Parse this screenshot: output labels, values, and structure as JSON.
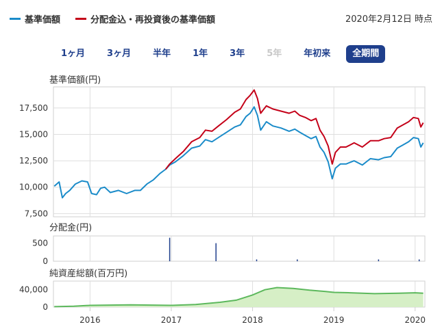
{
  "legend": {
    "nav_label": "基準価額",
    "nav_color": "#1a8bc9",
    "reinvested_label": "分配金込・再投資後の基準価額",
    "reinvested_color": "#c40018"
  },
  "as_of": "2020年2月12日 時点",
  "periods": [
    {
      "label": "1ヶ月",
      "state": "normal"
    },
    {
      "label": "3ヶ月",
      "state": "normal"
    },
    {
      "label": "半年",
      "state": "normal"
    },
    {
      "label": "1年",
      "state": "normal"
    },
    {
      "label": "3年",
      "state": "normal"
    },
    {
      "label": "5年",
      "state": "disabled"
    },
    {
      "label": "年初来",
      "state": "normal"
    },
    {
      "label": "全期間",
      "state": "active"
    }
  ],
  "panels": {
    "nav_title": "基準価額(円)",
    "dist_title": "分配金(円)",
    "assets_title": "純資産総額(百万円)"
  },
  "chart_data": [
    {
      "type": "line",
      "title": "基準価額(円)",
      "ylim": [
        7200,
        19500
      ],
      "yticks": [
        7500,
        10000,
        12500,
        15000,
        17500
      ],
      "ytick_labels": [
        "7,500",
        "10,000",
        "12,500",
        "15,000",
        "17,500"
      ],
      "xlim": [
        2015.55,
        2020.12
      ],
      "xticks": [
        2016,
        2017,
        2018,
        2019,
        2020
      ],
      "xtick_labels": [
        "2016",
        "2017",
        "2018",
        "2019",
        "2020"
      ],
      "grid": true,
      "series": [
        {
          "name": "基準価額",
          "color": "#1a8bc9",
          "x": [
            2015.56,
            2015.62,
            2015.66,
            2015.7,
            2015.75,
            2015.82,
            2015.9,
            2015.97,
            2016.02,
            2016.08,
            2016.13,
            2016.18,
            2016.25,
            2016.35,
            2016.45,
            2016.55,
            2016.62,
            2016.7,
            2016.78,
            2016.86,
            2016.93,
            2016.98,
            2017.05,
            2017.15,
            2017.25,
            2017.35,
            2017.42,
            2017.5,
            2017.58,
            2017.68,
            2017.78,
            2017.85,
            2017.92,
            2017.97,
            2018.02,
            2018.06,
            2018.1,
            2018.17,
            2018.25,
            2018.35,
            2018.45,
            2018.52,
            2018.58,
            2018.65,
            2018.72,
            2018.78,
            2018.83,
            2018.88,
            2018.93,
            2018.98,
            2019.02,
            2019.08,
            2019.15,
            2019.25,
            2019.35,
            2019.45,
            2019.55,
            2019.62,
            2019.7,
            2019.78,
            2019.85,
            2019.92,
            2019.98,
            2020.04,
            2020.07,
            2020.1
          ],
          "values": [
            10100,
            10500,
            9000,
            9400,
            9700,
            10300,
            10600,
            10500,
            9400,
            9300,
            9900,
            10000,
            9500,
            9700,
            9400,
            9700,
            9700,
            10300,
            10700,
            11300,
            11700,
            12100,
            12400,
            13000,
            13700,
            13900,
            14500,
            14300,
            14700,
            15200,
            15700,
            15900,
            16700,
            17000,
            17600,
            16800,
            15400,
            16200,
            15800,
            15600,
            15300,
            15500,
            15200,
            14900,
            14600,
            14800,
            13800,
            13300,
            12400,
            10800,
            11800,
            12200,
            12200,
            12500,
            12100,
            12700,
            12600,
            12800,
            12900,
            13700,
            14000,
            14300,
            14700,
            14600,
            13800,
            14200
          ]
        },
        {
          "name": "分配金込・再投資後の基準価額",
          "color": "#c40018",
          "x": [
            2016.93,
            2016.98,
            2017.05,
            2017.15,
            2017.25,
            2017.35,
            2017.42,
            2017.5,
            2017.58,
            2017.68,
            2017.78,
            2017.85,
            2017.92,
            2017.97,
            2018.02,
            2018.06,
            2018.1,
            2018.17,
            2018.25,
            2018.35,
            2018.45,
            2018.52,
            2018.58,
            2018.65,
            2018.72,
            2018.78,
            2018.83,
            2018.88,
            2018.93,
            2018.98,
            2019.02,
            2019.08,
            2019.15,
            2019.25,
            2019.35,
            2019.45,
            2019.55,
            2019.62,
            2019.7,
            2019.78,
            2019.85,
            2019.92,
            2019.98,
            2020.04,
            2020.07,
            2020.1
          ],
          "values": [
            11700,
            12200,
            12700,
            13400,
            14300,
            14700,
            15400,
            15300,
            15800,
            16400,
            17100,
            17400,
            18300,
            18700,
            19200,
            18400,
            17000,
            17700,
            17400,
            17200,
            17000,
            17200,
            16800,
            16600,
            16300,
            16500,
            15400,
            14800,
            13900,
            12200,
            13300,
            13800,
            13800,
            14200,
            13800,
            14400,
            14400,
            14600,
            14700,
            15600,
            15900,
            16200,
            16600,
            16500,
            15700,
            16100
          ]
        }
      ]
    },
    {
      "type": "bar",
      "title": "分配金(円)",
      "ylim": [
        0,
        700
      ],
      "yticks": [
        0,
        500
      ],
      "ytick_labels": [
        "0",
        "500"
      ],
      "series": [
        {
          "name": "分配金",
          "color": "#1f3f8c",
          "x": [
            2016.98,
            2017.55,
            2018.05,
            2018.55,
            2019.55,
            2020.05
          ],
          "values": [
            650,
            500,
            50,
            50,
            50,
            50
          ]
        }
      ]
    },
    {
      "type": "area",
      "title": "純資産総額(百万円)",
      "ylim": [
        0,
        60000
      ],
      "yticks": [
        0,
        40000
      ],
      "ytick_labels": [
        "0",
        "40,000"
      ],
      "series": [
        {
          "name": "純資産総額",
          "color": "#5cb85c",
          "x": [
            2015.56,
            2015.8,
            2016.0,
            2016.5,
            2017.0,
            2017.3,
            2017.6,
            2017.8,
            2018.0,
            2018.15,
            2018.3,
            2018.5,
            2018.7,
            2018.9,
            2019.0,
            2019.2,
            2019.5,
            2019.8,
            2020.0,
            2020.1
          ],
          "values": [
            1000,
            2000,
            4000,
            5000,
            4000,
            6000,
            11000,
            16000,
            28000,
            40000,
            45000,
            43000,
            39000,
            36000,
            34000,
            33000,
            31000,
            32000,
            33000,
            32000
          ]
        }
      ]
    }
  ]
}
